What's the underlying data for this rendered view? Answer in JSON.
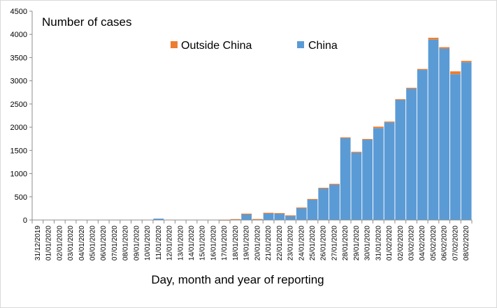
{
  "chart_data": {
    "type": "bar",
    "stacked": true,
    "title": "Number of cases",
    "xlabel": "Day, month and year of reporting",
    "ylabel": "",
    "ylim": [
      0,
      4500
    ],
    "yticks": [
      0,
      500,
      1000,
      1500,
      2000,
      2500,
      3000,
      3500,
      4000,
      4500
    ],
    "categories": [
      "31/12/2019",
      "01/01/2020",
      "02/01/2020",
      "03/01/2020",
      "04/01/2020",
      "05/01/2020",
      "06/01/2020",
      "07/01/2020",
      "08/01/2020",
      "09/01/2020",
      "10/01/2020",
      "11/01/2020",
      "12/01/2020",
      "13/01/2020",
      "14/01/2020",
      "15/01/2020",
      "16/01/2020",
      "17/01/2020",
      "18/01/2020",
      "19/01/2020",
      "20/01/2020",
      "21/01/2020",
      "22/01/2020",
      "23/01/2020",
      "24/01/2020",
      "25/01/2020",
      "26/01/2020",
      "27/01/2020",
      "28/01/2020",
      "29/01/2020",
      "30/01/2020",
      "31/01/2020",
      "01/02/2020",
      "02/02/2020",
      "03/02/2020",
      "04/02/2020",
      "05/02/2020",
      "06/02/2020",
      "07/02/2020",
      "08/02/2020"
    ],
    "series": [
      {
        "name": "China",
        "color": "#5b9bd5",
        "values": [
          0,
          0,
          0,
          0,
          0,
          0,
          0,
          0,
          0,
          0,
          0,
          30,
          0,
          0,
          0,
          0,
          0,
          4,
          17,
          136,
          19,
          151,
          140,
          97,
          259,
          444,
          688,
          769,
          1771,
          1459,
          1737,
          1982,
          2102,
          2590,
          2829,
          3235,
          3887,
          3694,
          3143,
          3399
        ]
      },
      {
        "name": "Outside China",
        "color": "#ed7d31",
        "values": [
          0,
          0,
          0,
          0,
          0,
          0,
          0,
          0,
          0,
          0,
          0,
          0,
          0,
          0,
          0,
          0,
          0,
          1,
          1,
          1,
          1,
          5,
          9,
          3,
          10,
          9,
          6,
          10,
          10,
          10,
          8,
          30,
          20,
          13,
          20,
          20,
          40,
          30,
          60,
          30
        ]
      }
    ],
    "legend_position": "top",
    "grid": false
  }
}
